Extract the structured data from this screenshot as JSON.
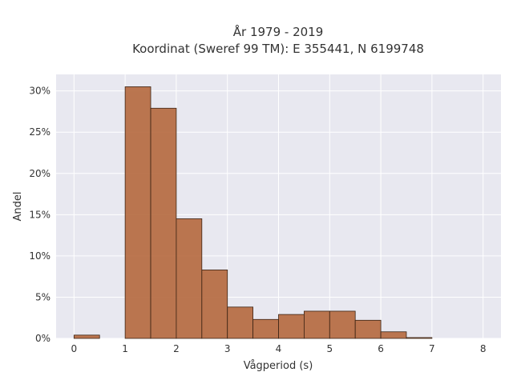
{
  "chart_data": {
    "type": "bar",
    "title_line1": "År 1979 - 2019",
    "title_line2": "Koordinat (Sweref 99 TM): E 355441, N 6199748",
    "xlabel": "Vågperiod (s)",
    "ylabel": "Andel",
    "xlim": [
      -0.35,
      8.35
    ],
    "ylim": [
      0,
      0.32
    ],
    "x_ticks": [
      0,
      1,
      2,
      3,
      4,
      5,
      6,
      7,
      8
    ],
    "y_ticks": [
      0,
      0.05,
      0.1,
      0.15,
      0.2,
      0.25,
      0.3
    ],
    "y_tick_labels": [
      "0%",
      "5%",
      "10%",
      "15%",
      "20%",
      "25%",
      "30%"
    ],
    "grid": true,
    "bar_color": "#b5683d",
    "bar_edge_color": "#3a2314",
    "plot_background": "#e8e8f0",
    "bins": [
      {
        "x0": 0.0,
        "x1": 0.5,
        "value": 0.004
      },
      {
        "x0": 0.5,
        "x1": 1.0,
        "value": 0.0
      },
      {
        "x0": 1.0,
        "x1": 1.5,
        "value": 0.305
      },
      {
        "x0": 1.5,
        "x1": 2.0,
        "value": 0.279
      },
      {
        "x0": 2.0,
        "x1": 2.5,
        "value": 0.145
      },
      {
        "x0": 2.5,
        "x1": 3.0,
        "value": 0.083
      },
      {
        "x0": 3.0,
        "x1": 3.5,
        "value": 0.038
      },
      {
        "x0": 3.5,
        "x1": 4.0,
        "value": 0.023
      },
      {
        "x0": 4.0,
        "x1": 4.5,
        "value": 0.029
      },
      {
        "x0": 4.5,
        "x1": 5.0,
        "value": 0.033
      },
      {
        "x0": 5.0,
        "x1": 5.5,
        "value": 0.033
      },
      {
        "x0": 5.5,
        "x1": 6.0,
        "value": 0.022
      },
      {
        "x0": 6.0,
        "x1": 6.5,
        "value": 0.008
      },
      {
        "x0": 6.5,
        "x1": 7.0,
        "value": 0.001
      }
    ]
  }
}
